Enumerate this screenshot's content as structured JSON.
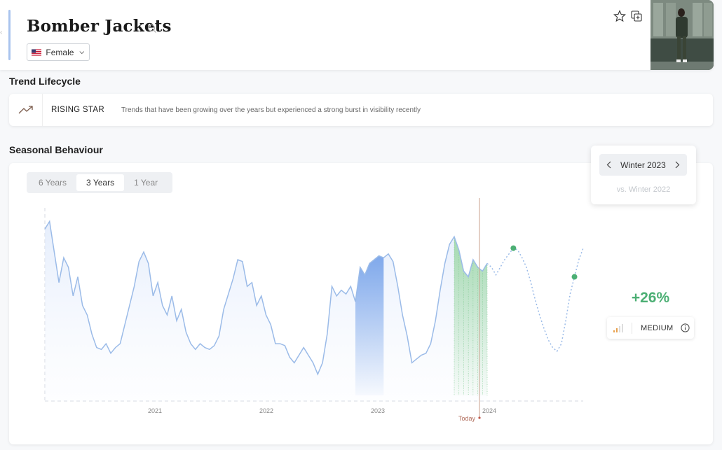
{
  "header": {
    "title": "Bomber Jackets",
    "gender": "Female",
    "icons": [
      "search-icon",
      "star-icon",
      "add-to-collection-icon",
      "chevron-down-icon",
      "us-flag-icon"
    ]
  },
  "lifecycle": {
    "section_title": "Trend Lifecycle",
    "label": "RISING STAR",
    "description": "Trends that have been growing over the years but experienced a strong burst in visibility recently",
    "icon": "trending-up-icon"
  },
  "seasonal": {
    "section_title": "Seasonal Behaviour",
    "tabs": [
      "6 Years",
      "3 Years",
      "1 Year"
    ],
    "active_tab": "3 Years",
    "season": "Winter 2023",
    "compare": "vs. Winter 2022",
    "change": "+26%",
    "confidence": "MEDIUM",
    "today_label": "Today",
    "colors": {
      "line": "#9bbbe8",
      "highlight_prev": "#7aa5ea",
      "highlight_curr": "#9ed8a8",
      "forecast_dot": "#4caf74",
      "today": "#c9a08e"
    }
  },
  "chart_data": {
    "type": "line",
    "title": "",
    "xlabel": "",
    "ylabel": "",
    "x_ticks": [
      "2021",
      "2022",
      "2023",
      "2024"
    ],
    "series": [
      {
        "values": [
          0.9,
          0.94,
          0.78,
          0.62,
          0.75,
          0.7,
          0.55,
          0.65,
          0.5,
          0.45,
          0.35,
          0.28,
          0.27,
          0.3,
          0.25,
          0.28,
          0.3,
          0.4,
          0.5,
          0.6,
          0.73,
          0.78,
          0.72,
          0.55,
          0.62,
          0.5,
          0.45,
          0.55,
          0.42,
          0.48,
          0.36,
          0.3,
          0.27,
          0.3,
          0.28,
          0.27,
          0.29,
          0.34,
          0.48,
          0.56,
          0.64,
          0.74,
          0.73,
          0.6,
          0.62,
          0.5,
          0.55,
          0.45,
          0.4,
          0.3,
          0.3,
          0.29,
          0.23,
          0.2,
          0.24,
          0.28,
          0.24,
          0.2,
          0.14,
          0.2,
          0.35,
          0.6,
          0.55,
          0.58,
          0.56,
          0.6,
          0.52,
          0.7,
          0.66,
          0.72,
          0.74,
          0.76,
          0.75,
          0.77,
          0.73,
          0.6,
          0.45,
          0.34,
          0.2,
          0.22,
          0.24,
          0.25,
          0.3,
          0.42,
          0.58,
          0.72,
          0.82,
          0.86,
          0.79,
          0.68,
          0.65,
          0.74,
          0.7,
          0.68,
          0.72
        ]
      }
    ],
    "forecast": [
      0.7,
      0.66,
      0.7,
      0.74,
      0.77,
      0.8,
      0.79,
      0.75,
      0.7,
      0.62,
      0.53,
      0.45,
      0.38,
      0.32,
      0.28,
      0.26,
      0.3,
      0.42,
      0.56,
      0.65,
      0.74,
      0.8
    ],
    "highlight_previous_season": "Winter 2022",
    "highlight_current_season": "Winter 2023"
  }
}
